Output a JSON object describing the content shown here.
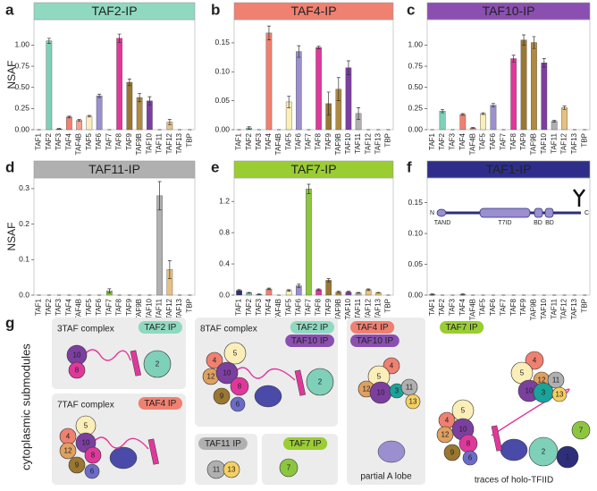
{
  "chart_data": [
    {
      "type": "bar",
      "panel": "a",
      "title": "TAF2-IP",
      "title_color": "#8fd9c0",
      "ylabel": "NSAF",
      "categories": [
        "TAF1",
        "TAF2",
        "TAF3",
        "TAF4",
        "TAF4B",
        "TAF5",
        "TAF6",
        "TAF7",
        "TAF8",
        "TAF9",
        "TAF9B",
        "TAF10",
        "TAF11",
        "TAF12",
        "TAF13",
        "TBP"
      ],
      "values": [
        0,
        1.05,
        0.01,
        0.15,
        0.11,
        0.16,
        0.4,
        0,
        1.08,
        0.56,
        0.38,
        0.34,
        0,
        0.09,
        0,
        0
      ],
      "errors": [
        0,
        0.03,
        0.005,
        0.01,
        0.01,
        0.01,
        0.02,
        0,
        0.05,
        0.04,
        0.05,
        0.05,
        0,
        0.03,
        0,
        0
      ],
      "colors": [
        "#2e2e7a",
        "#7fd0b8",
        "#1aa39a",
        "#f08070",
        "#f5a090",
        "#fbeeb8",
        "#9b8fd0",
        "#8cc63f",
        "#e0389a",
        "#9a7730",
        "#b08a40",
        "#7c3fa0",
        "#b0b0b0",
        "#e8c080",
        "#f5d060",
        "#888888"
      ],
      "ylim": [
        0,
        1.3
      ],
      "yticks": [
        {
          "value": 0,
          "label": "0.00"
        },
        0.25,
        {
          "value": 0.5,
          "label": "0.50"
        },
        0.75,
        {
          "value": 1,
          "label": "1.00"
        }
      ]
    },
    {
      "type": "bar",
      "panel": "b",
      "title": "TAF4-IP",
      "title_color": "#f08070",
      "categories": [
        "TAF1",
        "TAF2",
        "TAF3",
        "TAF4",
        "TAF4B",
        "TAF5",
        "TAF6",
        "TAF7",
        "TAF8",
        "TAF9",
        "TAF9B",
        "TAF10",
        "TAF11",
        "TAF12",
        "TAF13",
        "TBP"
      ],
      "values": [
        0,
        0.003,
        0,
        0.167,
        0,
        0.048,
        0.135,
        0,
        0.142,
        0.045,
        0.07,
        0.107,
        0.028,
        0,
        0,
        0
      ],
      "errors": [
        0,
        0.002,
        0,
        0.012,
        0,
        0.01,
        0.01,
        0,
        0.002,
        0.02,
        0.02,
        0.012,
        0.01,
        0,
        0,
        0
      ],
      "colors": [
        "#2e2e7a",
        "#7fd0b8",
        "#1aa39a",
        "#f08070",
        "#f5a090",
        "#fbeeb8",
        "#9b8fd0",
        "#8cc63f",
        "#e0389a",
        "#9a7730",
        "#b08a40",
        "#7c3fa0",
        "#b0b0b0",
        "#e8c080",
        "#f5d060",
        "#888888"
      ],
      "ylim": [
        0,
        0.19
      ],
      "yticks": [
        {
          "value": 0,
          "label": "0.00"
        },
        0.05,
        {
          "value": 0.1,
          "label": "0.10"
        },
        0.15
      ]
    },
    {
      "type": "bar",
      "panel": "c",
      "title": "TAF10-IP",
      "title_color": "#8a4fb0",
      "categories": [
        "TAF1",
        "TAF2",
        "TAF3",
        "TAF4",
        "TAF4B",
        "TAF5",
        "TAF6",
        "TAF7",
        "TAF8",
        "TAF9",
        "TAF9B",
        "TAF10",
        "TAF11",
        "TAF12",
        "TAF13",
        "TBP"
      ],
      "values": [
        0,
        0.22,
        0,
        0.18,
        0.02,
        0.19,
        0.29,
        0,
        0.84,
        1.06,
        1.03,
        0.79,
        0.1,
        0.26,
        0,
        0
      ],
      "errors": [
        0,
        0.02,
        0,
        0.01,
        0.005,
        0.01,
        0.02,
        0,
        0.04,
        0.06,
        0.07,
        0.05,
        0.01,
        0.02,
        0,
        0
      ],
      "colors": [
        "#2e2e7a",
        "#7fd0b8",
        "#1aa39a",
        "#f08070",
        "#f5a090",
        "#fbeeb8",
        "#9b8fd0",
        "#8cc63f",
        "#e0389a",
        "#9a7730",
        "#b08a40",
        "#7c3fa0",
        "#b0b0b0",
        "#e8c080",
        "#f5d060",
        "#888888"
      ],
      "ylim": [
        0,
        1.3
      ],
      "yticks": [
        {
          "value": 0,
          "label": "0.00"
        },
        0.25,
        {
          "value": 0.5,
          "label": "0.50"
        },
        0.75,
        {
          "value": 1,
          "label": "1.00"
        }
      ]
    },
    {
      "type": "bar",
      "panel": "d",
      "title": "TAF11-IP",
      "title_color": "#b0b0b0",
      "ylabel": "NSAF",
      "categories": [
        "TAF1",
        "TAF2",
        "TAF3",
        "TAF4",
        "TAF4B",
        "TAF5",
        "TAF6",
        "TAF7",
        "TAF8",
        "TAF9",
        "TAF9B",
        "TAF10",
        "TAF11",
        "TAF12",
        "TAF13",
        "TBP"
      ],
      "values": [
        0,
        0,
        0,
        0,
        0,
        0,
        0,
        0.012,
        0,
        0,
        0,
        0,
        0.28,
        0.072,
        0,
        0
      ],
      "errors": [
        0,
        0,
        0,
        0,
        0,
        0,
        0,
        0.006,
        0,
        0,
        0,
        0,
        0.04,
        0.025,
        0,
        0
      ],
      "colors": [
        "#2e2e7a",
        "#7fd0b8",
        "#1aa39a",
        "#f08070",
        "#f5a090",
        "#fbeeb8",
        "#9b8fd0",
        "#8cc63f",
        "#e0389a",
        "#9a7730",
        "#b08a40",
        "#7c3fa0",
        "#b0b0b0",
        "#e8c080",
        "#f5d060",
        "#888888"
      ],
      "ylim": [
        0,
        0.33
      ],
      "yticks": [
        {
          "value": 0,
          "label": "0.0"
        },
        0.1,
        0.2,
        0.3
      ]
    },
    {
      "type": "bar",
      "panel": "e",
      "title": "TAF7-IP",
      "title_color": "#9acd32",
      "categories": [
        "TAF1",
        "TAF2",
        "TAF3",
        "TAF4",
        "TAF4B",
        "TAF5",
        "TAF6",
        "TAF7",
        "TAF8",
        "TAF9",
        "TAF9B",
        "TAF10",
        "TAF11",
        "TAF12",
        "TAF13",
        "TBP"
      ],
      "values": [
        0.06,
        0.03,
        0.01,
        0.08,
        0,
        0.06,
        0.12,
        1.36,
        0.07,
        0.19,
        0.04,
        0.04,
        0.03,
        0.07,
        0.03,
        0
      ],
      "errors": [
        0.01,
        0.005,
        0.005,
        0.01,
        0,
        0.01,
        0.02,
        0.06,
        0.01,
        0.02,
        0.01,
        0.01,
        0.005,
        0.01,
        0.005,
        0
      ],
      "colors": [
        "#2e2e7a",
        "#7fd0b8",
        "#1aa39a",
        "#f08070",
        "#f5a090",
        "#fbeeb8",
        "#9b8fd0",
        "#8cc63f",
        "#e0389a",
        "#9a7730",
        "#b08a40",
        "#7c3fa0",
        "#b0b0b0",
        "#e8c080",
        "#f5d060",
        "#888888"
      ],
      "ylim": [
        0,
        1.5
      ],
      "yticks": [
        {
          "value": 0,
          "label": "0.0"
        },
        0.4,
        0.8,
        1.2
      ]
    },
    {
      "type": "bar",
      "panel": "f",
      "title": "TAF1-IP",
      "title_color": "#2e2e8a",
      "title_text_color": "#ffffff",
      "categories": [
        "TAF1",
        "TAF2",
        "TAF3",
        "TAF4",
        "TAF4B",
        "TAF5",
        "TAF6",
        "TAF7",
        "TAF8",
        "TAF9",
        "TAF9B",
        "TAF10",
        "TAF11",
        "TAF12",
        "TAF13",
        "TBP"
      ],
      "values": [
        0.001,
        0,
        0,
        0.001,
        0,
        0,
        0,
        0,
        0,
        0,
        0,
        0,
        0,
        0,
        0,
        0
      ],
      "errors": [
        0.001,
        0,
        0,
        0.001,
        0,
        0,
        0,
        0,
        0,
        0,
        0,
        0,
        0,
        0,
        0,
        0
      ],
      "colors": [
        "#2e2e7a",
        "#7fd0b8",
        "#1aa39a",
        "#f08070",
        "#f5a090",
        "#fbeeb8",
        "#9b8fd0",
        "#8cc63f",
        "#e0389a",
        "#9a7730",
        "#b08a40",
        "#7c3fa0",
        "#b0b0b0",
        "#e8c080",
        "#f5d060",
        "#888888"
      ],
      "ylim": [
        0,
        0.19
      ],
      "yticks": [
        {
          "value": 0,
          "label": "0.00"
        },
        0.05,
        {
          "value": 0.1,
          "label": "0.10"
        },
        0.15
      ],
      "schematic": {
        "n": "N",
        "c": "C",
        "domains": [
          "TAND",
          "T7ID",
          "BD",
          "BD"
        ]
      }
    }
  ],
  "diagram": {
    "panel": "g",
    "side_label": "cytoplasmic submodules",
    "subunit_colors": {
      "1": "#2e2e7a",
      "2": "#7fd0b8",
      "3": "#1aa39a",
      "4": "#f08070",
      "5": "#fbeeb8",
      "6": "#6c6cc8",
      "7": "#8cc63f",
      "8": "#e0389a",
      "9": "#9a7730",
      "10": "#7c3fa0",
      "11": "#b0b0b0",
      "12": "#e0a060",
      "13": "#f5d060"
    },
    "groups": [
      {
        "title": "3TAF complex",
        "tags": [
          {
            "label": "TAF2 IP",
            "color": "#8fd9c0"
          }
        ],
        "nodes": [
          "10",
          "8",
          "2"
        ]
      },
      {
        "title": "7TAF complex",
        "tags": [
          {
            "label": "TAF4 IP",
            "color": "#f08070"
          }
        ],
        "nodes": [
          "4",
          "12",
          "5",
          "10",
          "8",
          "9",
          "6"
        ]
      },
      {
        "title": "8TAF complex",
        "tags": [
          {
            "label": "TAF2 IP",
            "color": "#8fd9c0"
          },
          {
            "label": "TAF10 IP",
            "color": "#8a4fb0"
          }
        ],
        "nodes": [
          "4",
          "12",
          "5",
          "10",
          "8",
          "9",
          "6",
          "2"
        ]
      },
      {
        "tags": [
          {
            "label": "TAF11 IP",
            "color": "#b0b0b0"
          }
        ],
        "nodes": [
          "11",
          "13"
        ]
      },
      {
        "tags": [
          {
            "label": "TAF7 IP",
            "color": "#9acd32"
          }
        ],
        "nodes": [
          "7"
        ]
      },
      {
        "tags": [
          {
            "label": "TAF4 IP",
            "color": "#f08070"
          },
          {
            "label": "TAF10 IP",
            "color": "#8a4fb0"
          }
        ],
        "nodes": [
          "4",
          "5",
          "12",
          "10",
          "3",
          "11",
          "13"
        ],
        "caption": "partial A lobe"
      },
      {
        "tags": [
          {
            "label": "TAF7 IP",
            "color": "#9acd32"
          }
        ],
        "nodes": [
          "4",
          "5",
          "12",
          "10",
          "3",
          "11",
          "13",
          "4",
          "5",
          "12",
          "10",
          "8",
          "9",
          "6",
          "2",
          "1",
          "7"
        ],
        "caption": "traces of holo-TFIID"
      }
    ]
  }
}
